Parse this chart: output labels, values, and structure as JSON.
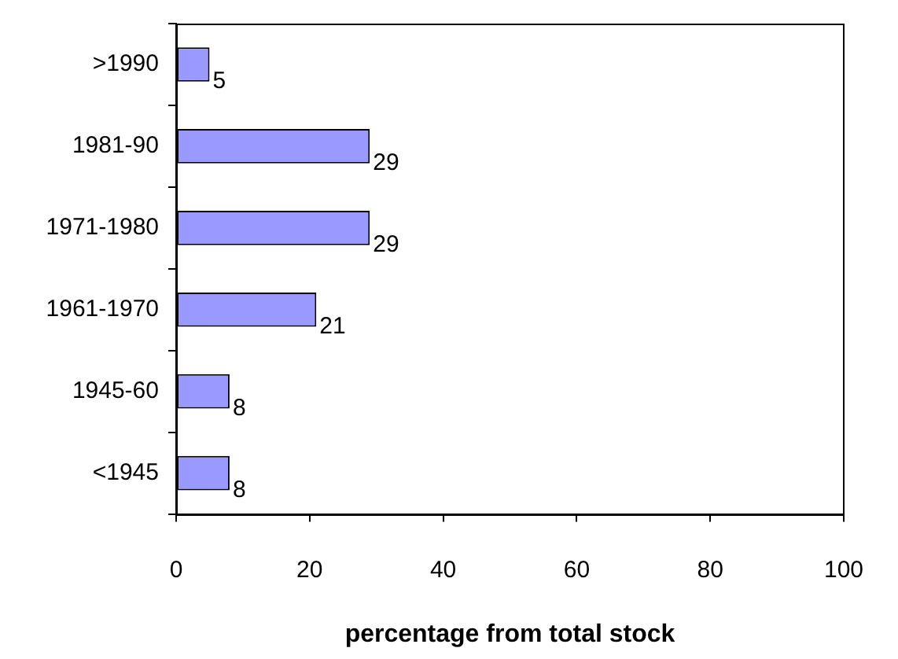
{
  "chart_data": {
    "type": "bar",
    "orientation": "horizontal",
    "xlabel": "percentage from total stock",
    "categories": [
      ">1990",
      "1981-90",
      "1971-1980",
      "1961-1970",
      "1945-60",
      "<1945"
    ],
    "values": [
      5,
      29,
      29,
      21,
      8,
      8
    ],
    "color": "#9999ff",
    "xlim": [
      0,
      100
    ],
    "xticks": [
      0,
      20,
      40,
      60,
      80,
      100
    ],
    "data_labels": true,
    "grid": false,
    "legend": false
  }
}
